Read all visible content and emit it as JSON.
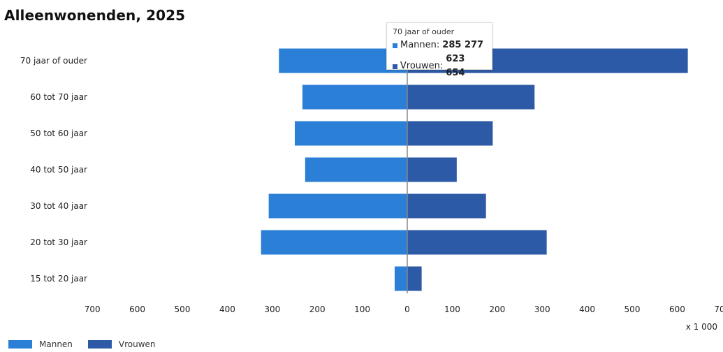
{
  "title": "Alleenwonenden, 2025",
  "unit_label": "x 1 000",
  "colors": {
    "mannen": "#2b7fd6",
    "vrouwen": "#2d5aa6",
    "axis": "#888888"
  },
  "legend": [
    {
      "label": "Mannen",
      "color": "#2b7fd6"
    },
    {
      "label": "Vrouwen",
      "color": "#2d5aa6"
    }
  ],
  "tooltip": {
    "title": "70 jaar of ouder",
    "rows": [
      {
        "label": "Mannen:",
        "value": "285 277",
        "color": "#2b7fd6"
      },
      {
        "label": "Vrouwen:",
        "value": "623 654",
        "color": "#2d5aa6"
      }
    ]
  },
  "chart_data": {
    "type": "bar",
    "orientation": "horizontal-population-pyramid",
    "title": "Alleenwonenden, 2025",
    "categories": [
      "70 jaar of ouder",
      "60 tot 70 jaar",
      "50 tot 60 jaar",
      "40 tot 50 jaar",
      "30 tot 40 jaar",
      "20 tot 30 jaar",
      "15 tot 20 jaar"
    ],
    "series": [
      {
        "name": "Mannen",
        "side": "left",
        "values": [
          285.277,
          233,
          250,
          227,
          308,
          325,
          28
        ]
      },
      {
        "name": "Vrouwen",
        "side": "right",
        "values": [
          623.654,
          283,
          190,
          110,
          175,
          310,
          32
        ]
      }
    ],
    "x_ticks": [
      "700",
      "600",
      "500",
      "400",
      "300",
      "200",
      "100",
      "0",
      "100",
      "200",
      "300",
      "400",
      "500",
      "600",
      "700"
    ],
    "xlim": [
      -700,
      700
    ],
    "unit": "x 1 000",
    "grid": false,
    "legend_position": "bottom-left"
  }
}
